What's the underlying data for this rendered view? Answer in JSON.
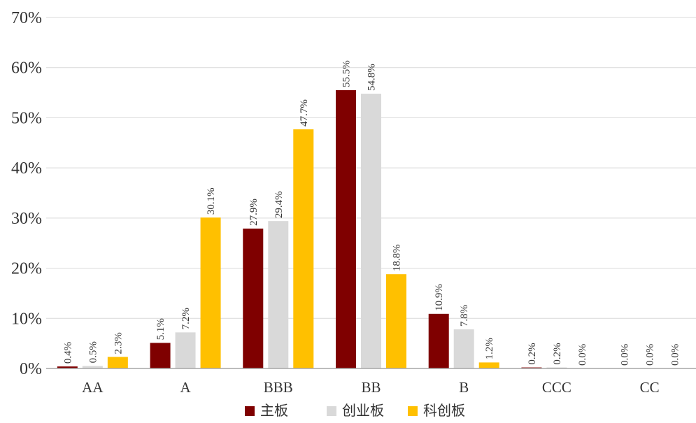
{
  "chart_data": {
    "type": "bar",
    "categories": [
      "AA",
      "A",
      "BBB",
      "BB",
      "B",
      "CCC",
      "CC"
    ],
    "series": [
      {
        "name": "主板",
        "color": "#7f0000",
        "values": [
          0.4,
          5.1,
          27.9,
          55.5,
          10.9,
          0.2,
          0.0
        ]
      },
      {
        "name": "创业板",
        "color": "#d9d9d9",
        "values": [
          0.5,
          7.2,
          29.4,
          54.8,
          7.8,
          0.2,
          0.0
        ]
      },
      {
        "name": "科创板",
        "color": "#ffc000",
        "values": [
          2.3,
          30.1,
          47.7,
          18.8,
          1.2,
          0.0,
          0.0
        ]
      }
    ],
    "data_labels": [
      [
        "0.4%",
        "5.1%",
        "27.9%",
        "55.5%",
        "10.9%",
        "0.2%",
        "0.0%"
      ],
      [
        "0.5%",
        "7.2%",
        "29.4%",
        "54.8%",
        "7.8%",
        "0.2%",
        "0.0%"
      ],
      [
        "2.3%",
        "30.1%",
        "47.7%",
        "18.8%",
        "1.2%",
        "0.0%",
        "0.0%"
      ]
    ],
    "y_ticks": [
      "0%",
      "10%",
      "20%",
      "30%",
      "40%",
      "50%",
      "60%",
      "70%"
    ],
    "ylim": [
      0,
      70
    ],
    "grid": true,
    "legend_position": "bottom"
  }
}
